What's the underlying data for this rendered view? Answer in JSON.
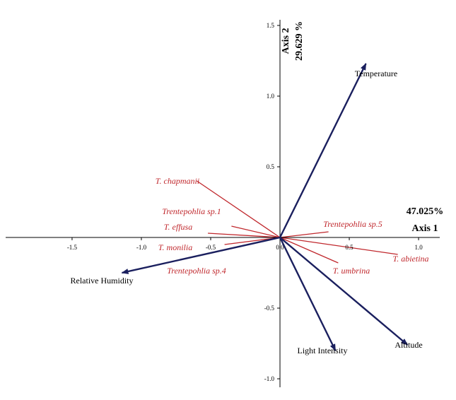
{
  "chart_data": {
    "type": "biplot",
    "x_axis": {
      "title": "Axis 1",
      "variance": "47.025%",
      "ticks": [
        -1.5,
        -1.0,
        -0.5,
        0.0,
        0.5,
        1.0
      ],
      "tick_labels": [
        "-1.5",
        "-1.0",
        "-0.5",
        "0.0",
        "0.5",
        "1.0"
      ]
    },
    "y_axis": {
      "title": "Axis 2",
      "variance": "29.629 %",
      "ticks": [
        -1.0,
        -0.5,
        0.5,
        1.0,
        1.5
      ],
      "tick_labels": [
        "-1.0",
        "-0.5",
        "0.5",
        "1.0",
        "1.5"
      ]
    },
    "xlim": [
      -2.02,
      1.27
    ],
    "ylim": [
      -1.15,
      1.68
    ],
    "arrow_color": "#1a1f5e",
    "species_color": "#c0282d",
    "environmental_vectors": [
      {
        "name": "Temperature",
        "x": 0.62,
        "y": 1.23
      },
      {
        "name": "Relative Humidity",
        "x": -1.14,
        "y": -0.25
      },
      {
        "name": "Light Intensity",
        "x": 0.4,
        "y": -0.8
      },
      {
        "name": "Altitude",
        "x": 0.92,
        "y": -0.76
      }
    ],
    "species": [
      {
        "name": "T. chapmanii",
        "x": -0.6,
        "y": 0.4
      },
      {
        "name": "Trentepohlia sp.1",
        "x": -0.35,
        "y": 0.08
      },
      {
        "name": "T. effusa",
        "x": -0.52,
        "y": 0.03
      },
      {
        "name": "T. monilia",
        "x": -0.4,
        "y": -0.05
      },
      {
        "name": "Trentepohlia sp.4",
        "x": -0.14,
        "y": -0.03
      },
      {
        "name": "Trentepohlia sp.5",
        "x": 0.35,
        "y": 0.04
      },
      {
        "name": "T. abietina",
        "x": 0.85,
        "y": -0.12
      },
      {
        "name": "T. umbrina",
        "x": 0.42,
        "y": -0.18
      }
    ]
  }
}
